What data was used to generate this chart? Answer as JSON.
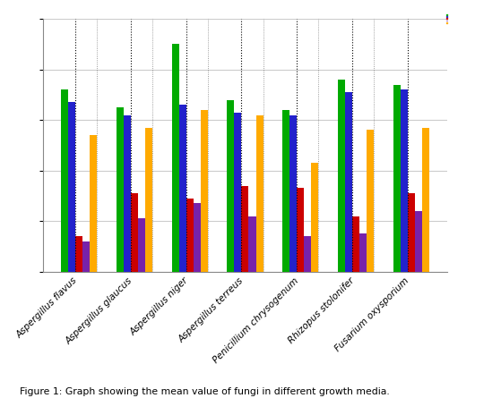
{
  "categories": [
    "Aspergillus flavus",
    "Aspergillus glaucus",
    "Aspergillus niger",
    "Aspergillus terreus",
    "Penicillium chrysogenum",
    "Rhizopus stolonifer",
    "Fusarium oxysporium"
  ],
  "series": {
    "green": [
      7.2,
      6.5,
      9.0,
      6.8,
      6.4,
      7.6,
      7.4
    ],
    "blue": [
      6.7,
      6.2,
      6.6,
      6.3,
      6.2,
      7.1,
      7.2
    ],
    "red": [
      1.4,
      3.1,
      2.9,
      3.4,
      3.3,
      2.2,
      3.1
    ],
    "purple": [
      1.2,
      2.1,
      2.7,
      2.2,
      1.4,
      1.5,
      2.4
    ],
    "yellow": [
      5.4,
      5.7,
      6.4,
      6.2,
      4.3,
      5.6,
      5.7
    ]
  },
  "colors": {
    "green": "#00aa00",
    "blue": "#2222cc",
    "red": "#cc0000",
    "purple": "#7722aa",
    "yellow": "#ffaa00"
  },
  "ylim": [
    0,
    10
  ],
  "bar_width": 0.13,
  "background": "#ffffff",
  "grid_color": "#cccccc",
  "caption": "Figure 1: Graph showing the mean value of fungi in different growth media."
}
